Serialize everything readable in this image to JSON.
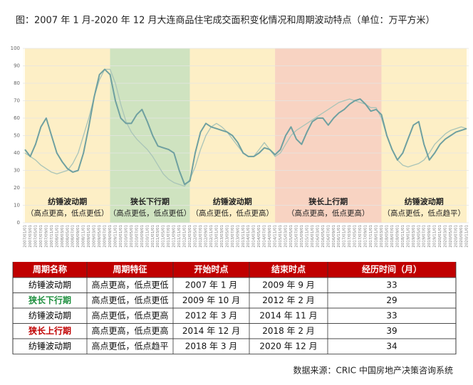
{
  "chart_data": {
    "type": "line",
    "title": "图：2007 年 1 月-2020 年 12 月大连商品住宅成交面积变化情况和周期波动特点（单位：万平方米）",
    "categories": [
      "2007/01/01",
      "2007/03/01",
      "2007/05/01",
      "2007/07/01",
      "2007/09/01",
      "2007/11/01",
      "2008/01/01",
      "2008/03/01",
      "2008/05/01",
      "2008/07/01",
      "2008/09/01",
      "2008/11/01",
      "2009/01/01",
      "2009/03/01",
      "2009/05/01",
      "2009/07/01",
      "2009/09/01",
      "2009/11/01",
      "2010/01/01",
      "2010/03/01",
      "2010/05/01",
      "2010/07/01",
      "2010/09/01",
      "2010/11/01",
      "2011/01/01",
      "2011/03/01",
      "2011/05/01",
      "2011/07/01",
      "2011/09/01",
      "2011/11/01",
      "2012/01/01",
      "2012/03/01",
      "2012/05/01",
      "2012/07/01",
      "2012/09/01",
      "2012/11/01",
      "2013/01/01",
      "2013/03/01",
      "2013/05/01",
      "2013/07/01",
      "2013/09/01",
      "2013/11/01",
      "2014/01/01",
      "2014/03/01",
      "2014/05/01",
      "2014/07/01",
      "2014/09/01",
      "2014/11/01",
      "2015/01/01",
      "2015/03/01",
      "2015/05/01",
      "2015/07/01",
      "2015/09/01",
      "2015/11/01",
      "2016/01/01",
      "2016/03/01",
      "2016/05/01",
      "2016/07/01",
      "2016/09/01",
      "2016/11/01",
      "2017/01/01",
      "2017/03/01",
      "2017/05/01",
      "2017/07/01",
      "2017/09/01",
      "2017/11/01",
      "2018/01/01",
      "2018/03/01",
      "2018/05/01",
      "2018/07/01",
      "2018/09/01",
      "2018/11/01",
      "2019/01/01",
      "2019/03/01",
      "2019/05/01",
      "2019/07/01",
      "2019/09/01",
      "2019/11/01",
      "2020/01/01",
      "2020/03/01",
      "2020/05/01",
      "2020/07/01",
      "2020/09/01",
      "2020/11/01"
    ],
    "series": [
      {
        "color": "#6fa0a0",
        "width": 2,
        "values": [
          42,
          38,
          45,
          55,
          60,
          50,
          40,
          35,
          31,
          29,
          30,
          40,
          55,
          72,
          85,
          88,
          85,
          70,
          60,
          57,
          57,
          62,
          65,
          58,
          50,
          44,
          43,
          42,
          40,
          30,
          22,
          24,
          40,
          52,
          57,
          55,
          54,
          53,
          52,
          50,
          46,
          40,
          38,
          38,
          40,
          43,
          42,
          39,
          42,
          50,
          55,
          48,
          45,
          52,
          58,
          60,
          60,
          56,
          60,
          63,
          65,
          68,
          70,
          71,
          68,
          64,
          65,
          62,
          50,
          42,
          36,
          40,
          48,
          56,
          58,
          45,
          36,
          40,
          45,
          48,
          50,
          52,
          53,
          54
        ]
      },
      {
        "color": "#a9c4b8",
        "width": 1.3,
        "values": [
          40,
          38,
          36,
          33,
          31,
          29,
          28,
          29,
          30,
          34,
          40,
          50,
          60,
          72,
          82,
          88,
          88,
          80,
          68,
          58,
          52,
          48,
          45,
          42,
          38,
          33,
          28,
          25,
          23,
          22,
          21,
          25,
          32,
          42,
          50,
          55,
          57,
          55,
          52,
          48,
          44,
          40,
          38,
          38,
          42,
          46,
          42,
          38,
          40,
          45,
          50,
          53,
          55,
          57,
          59,
          61,
          63,
          65,
          67,
          69,
          70,
          71,
          70,
          69,
          68,
          66,
          66,
          60,
          50,
          42,
          36,
          33,
          32,
          33,
          34,
          36,
          40,
          45,
          48,
          51,
          53,
          54,
          55,
          54
        ]
      }
    ],
    "bands": [
      {
        "from": "2007/01/01",
        "to": "2009/09/01",
        "color": "#fdefc6",
        "label": "纺锤波动期",
        "note": "（高点更高，低点更低）"
      },
      {
        "from": "2009/09/01",
        "to": "2012/03/01",
        "color": "#cfe3c0",
        "label": "狭长下行期",
        "note": "（高点更低，低点更低）"
      },
      {
        "from": "2012/03/01",
        "to": "2014/11/01",
        "color": "#fdefc6",
        "label": "纺锤波动期",
        "note": "（高点更低，低点更高）"
      },
      {
        "from": "2014/11/01",
        "to": "2018/03/01",
        "color": "#f8d3c2",
        "label": "狭长上行期",
        "note": "（高点更高，低点更高）"
      },
      {
        "from": "2018/03/01",
        "to": "2020/11/01",
        "color": "#fdefc6",
        "label": "纺锤波动期",
        "note": "（高点更低，低点趋平）"
      }
    ],
    "ylim": [
      0,
      100
    ],
    "yticks": [
      0,
      10,
      20,
      30,
      40,
      50,
      60,
      70,
      80,
      90,
      100
    ],
    "grid": true
  },
  "table": {
    "header": [
      "周期名称",
      "周期特征",
      "开始时点",
      "结束时点",
      "经历时间（月）"
    ],
    "rows": [
      {
        "color": "#000000",
        "cells": [
          "纺锤波动期",
          "高点更高，低点更低",
          "2007 年 1 月",
          "2009 年 9 月",
          "33"
        ]
      },
      {
        "color": "#1e8f3e",
        "cells": [
          "狭长下行期",
          "高点更低，低点更低",
          "2009 年 10 月",
          "2012 年 2 月",
          "29"
        ]
      },
      {
        "color": "#000000",
        "cells": [
          "纺锤波动期",
          "高点更低，低点更高",
          "2012 年 3 月",
          "2014 年 11 月",
          "33"
        ]
      },
      {
        "color": "#c00000",
        "cells": [
          "狭长上行期",
          "高点更高，低点更高",
          "2014 年 12 月",
          "2018 年 2 月",
          "39"
        ]
      },
      {
        "color": "#000000",
        "cells": [
          "纺锤波动期",
          "高点更低，低点趋平",
          "2018 年 3 月",
          "2020 年 12 月",
          "34"
        ]
      }
    ]
  },
  "source": "数据来源：CRIC 中国房地产决策咨询系统"
}
